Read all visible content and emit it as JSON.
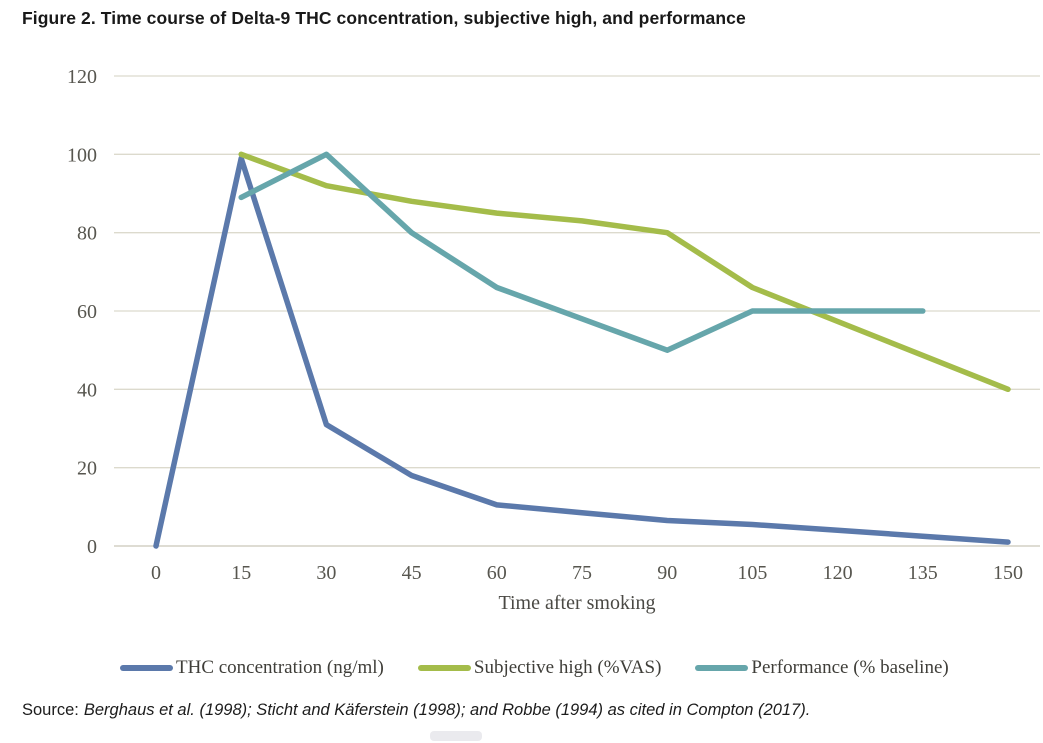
{
  "figure_title": "Figure 2. Time course of Delta-9 THC concentration, subjective high, and performance",
  "source": {
    "prefix": "Source:",
    "text": "Berghaus et al. (1998); Sticht and Käferstein (1998); and Robbe (1994) as cited in Compton (2017)."
  },
  "colors": {
    "gridline": "#dcdacd",
    "axis_line": "#cac8b9",
    "tick_label": "#57564f",
    "thc_blue": "#5b79ab",
    "high_green": "#a4bc4a",
    "perf_teal": "#66a6ab"
  },
  "chart_data": {
    "type": "line",
    "title": "",
    "xlabel": "Time after smoking",
    "ylabel": "",
    "x_ticks": [
      0,
      15,
      30,
      45,
      60,
      75,
      90,
      105,
      120,
      135,
      150
    ],
    "y_ticks": [
      0,
      20,
      40,
      60,
      80,
      100,
      120
    ],
    "xlim": [
      0,
      150
    ],
    "ylim": [
      0,
      120
    ],
    "grid": true,
    "legend_position": "bottom",
    "series": [
      {
        "name": "THC concentration (ng/ml)",
        "color": "#5b79ab",
        "points": [
          [
            0,
            0
          ],
          [
            15,
            99
          ],
          [
            30,
            31
          ],
          [
            45,
            18
          ],
          [
            60,
            10.5
          ],
          [
            75,
            8.5
          ],
          [
            90,
            6.5
          ],
          [
            105,
            5.5
          ],
          [
            120,
            4
          ],
          [
            135,
            2.5
          ],
          [
            150,
            1
          ]
        ]
      },
      {
        "name": "Subjective high (%VAS)",
        "color": "#a4bc4a",
        "points": [
          [
            15,
            100
          ],
          [
            30,
            92
          ],
          [
            45,
            88
          ],
          [
            60,
            85
          ],
          [
            75,
            83
          ],
          [
            90,
            80
          ],
          [
            105,
            66
          ],
          [
            150,
            40
          ]
        ]
      },
      {
        "name": "Performance (% baseline)",
        "color": "#66a6ab",
        "points": [
          [
            15,
            89
          ],
          [
            30,
            100
          ],
          [
            45,
            80
          ],
          [
            60,
            66
          ],
          [
            75,
            58
          ],
          [
            90,
            50
          ],
          [
            105,
            60
          ],
          [
            120,
            60
          ],
          [
            135,
            60
          ]
        ]
      }
    ]
  }
}
